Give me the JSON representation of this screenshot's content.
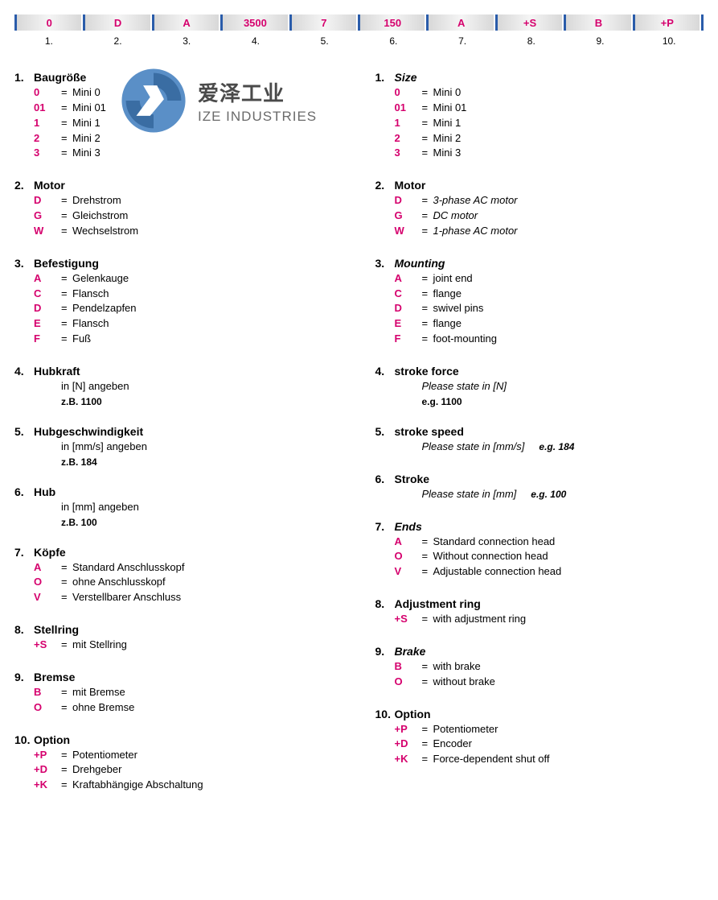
{
  "code_cells": [
    {
      "value": "0",
      "num": "1."
    },
    {
      "value": "D",
      "num": "2."
    },
    {
      "value": "A",
      "num": "3."
    },
    {
      "value": "3500",
      "num": "4."
    },
    {
      "value": "7",
      "num": "5."
    },
    {
      "value": "150",
      "num": "6."
    },
    {
      "value": "A",
      "num": "7."
    },
    {
      "value": "+S",
      "num": "8."
    },
    {
      "value": "B",
      "num": "9."
    },
    {
      "value": "+P",
      "num": "10."
    }
  ],
  "logo": {
    "cn": "爱泽工业",
    "en": "IZE INDUSTRIES"
  },
  "left": [
    {
      "num": "1.",
      "title": "Baugröße",
      "items": [
        {
          "code": "0",
          "desc": "Mini 0"
        },
        {
          "code": "01",
          "desc": "Mini 01"
        },
        {
          "code": "1",
          "desc": "Mini 1"
        },
        {
          "code": "2",
          "desc": "Mini 2"
        },
        {
          "code": "3",
          "desc": "Mini 3"
        }
      ]
    },
    {
      "num": "2.",
      "title": "Motor",
      "items": [
        {
          "code": "D",
          "desc": "Drehstrom"
        },
        {
          "code": "G",
          "desc": "Gleichstrom"
        },
        {
          "code": "W",
          "desc": "Wechselstrom"
        }
      ]
    },
    {
      "num": "3.",
      "title": "Befestigung",
      "items": [
        {
          "code": "A",
          "desc": "Gelenkauge"
        },
        {
          "code": "C",
          "desc": "Flansch"
        },
        {
          "code": "D",
          "desc": "Pendelzapfen"
        },
        {
          "code": "E",
          "desc": "Flansch"
        },
        {
          "code": "F",
          "desc": "Fuß"
        }
      ]
    },
    {
      "num": "4.",
      "title": "Hubkraft",
      "note": "in [N] angeben",
      "eg": "z.B. 1100"
    },
    {
      "num": "5.",
      "title": "Hubgeschwindigkeit",
      "note": "in [mm/s] angeben",
      "eg": "z.B. 184"
    },
    {
      "num": "6.",
      "title": "Hub",
      "note": "in [mm] angeben",
      "eg": "z.B. 100"
    },
    {
      "num": "7.",
      "title": "Köpfe",
      "items": [
        {
          "code": "A",
          "desc": "Standard Anschlusskopf"
        },
        {
          "code": "O",
          "desc": "ohne Anschlusskopf"
        },
        {
          "code": "V",
          "desc": "Verstellbarer Anschluss"
        }
      ]
    },
    {
      "num": "8.",
      "title": "Stellring",
      "items": [
        {
          "code": "+S",
          "desc": "mit Stellring"
        }
      ]
    },
    {
      "num": "9.",
      "title": "Bremse",
      "items": [
        {
          "code": "B",
          "desc": "mit Bremse"
        },
        {
          "code": "O",
          "desc": "ohne Bremse"
        }
      ]
    },
    {
      "num": "10.",
      "title": "Option",
      "items": [
        {
          "code": "+P",
          "desc": "Potentiometer"
        },
        {
          "code": "+D",
          "desc": "Drehgeber"
        },
        {
          "code": "+K",
          "desc": "Kraftabhängige Abschaltung"
        }
      ]
    }
  ],
  "right": [
    {
      "num": "1.",
      "title": "Size",
      "it": true,
      "items": [
        {
          "code": "0",
          "desc": "Mini 0"
        },
        {
          "code": "01",
          "desc": "Mini 01"
        },
        {
          "code": "1",
          "desc": "Mini 1"
        },
        {
          "code": "2",
          "desc": "Mini 2"
        },
        {
          "code": "3",
          "desc": "Mini 3"
        }
      ]
    },
    {
      "num": "2.",
      "title": "Motor",
      "items": [
        {
          "code": "D",
          "desc": "3-phase AC motor",
          "it": true
        },
        {
          "code": "G",
          "desc": "DC motor",
          "it": true
        },
        {
          "code": "W",
          "desc": "1-phase AC motor",
          "it": true
        }
      ]
    },
    {
      "num": "3.",
      "title": "Mounting",
      "it": true,
      "items": [
        {
          "code": "A",
          "desc": "joint end"
        },
        {
          "code": "C",
          "desc": "flange"
        },
        {
          "code": "D",
          "desc": "swivel pins"
        },
        {
          "code": "E",
          "desc": "flange"
        },
        {
          "code": "F",
          "desc": "foot-mounting"
        }
      ]
    },
    {
      "num": "4.",
      "title": "stroke force",
      "note": "Please state in [N]",
      "note_it": true,
      "eg": "e.g. 1100",
      "eg_it": true
    },
    {
      "num": "5.",
      "title": "stroke speed",
      "note": "Please state in [mm/s]",
      "note_it": true,
      "eg_inline": "e.g. 184"
    },
    {
      "num": "6.",
      "title": "Stroke",
      "note": "Please state in [mm]",
      "note_it": true,
      "eg_inline": "e.g. 100"
    },
    {
      "num": "7.",
      "title": "Ends",
      "it": true,
      "items": [
        {
          "code": "A",
          "desc": "Standard connection head"
        },
        {
          "code": "O",
          "desc": "Without connection head"
        },
        {
          "code": "V",
          "desc": "Adjustable connection head"
        }
      ]
    },
    {
      "num": "8.",
      "title": "Adjustment ring",
      "items": [
        {
          "code": "+S",
          "desc": "with adjustment ring"
        }
      ]
    },
    {
      "num": "9.",
      "title": "Brake",
      "it": true,
      "items": [
        {
          "code": "B",
          "desc": "with brake"
        },
        {
          "code": "O",
          "desc": "without brake"
        }
      ]
    },
    {
      "num": "10.",
      "title": "Option",
      "items": [
        {
          "code": "+P",
          "desc": "Potentiometer"
        },
        {
          "code": "+D",
          "desc": "Encoder"
        },
        {
          "code": "+K",
          "desc": "Force-dependent shut off"
        }
      ]
    }
  ]
}
